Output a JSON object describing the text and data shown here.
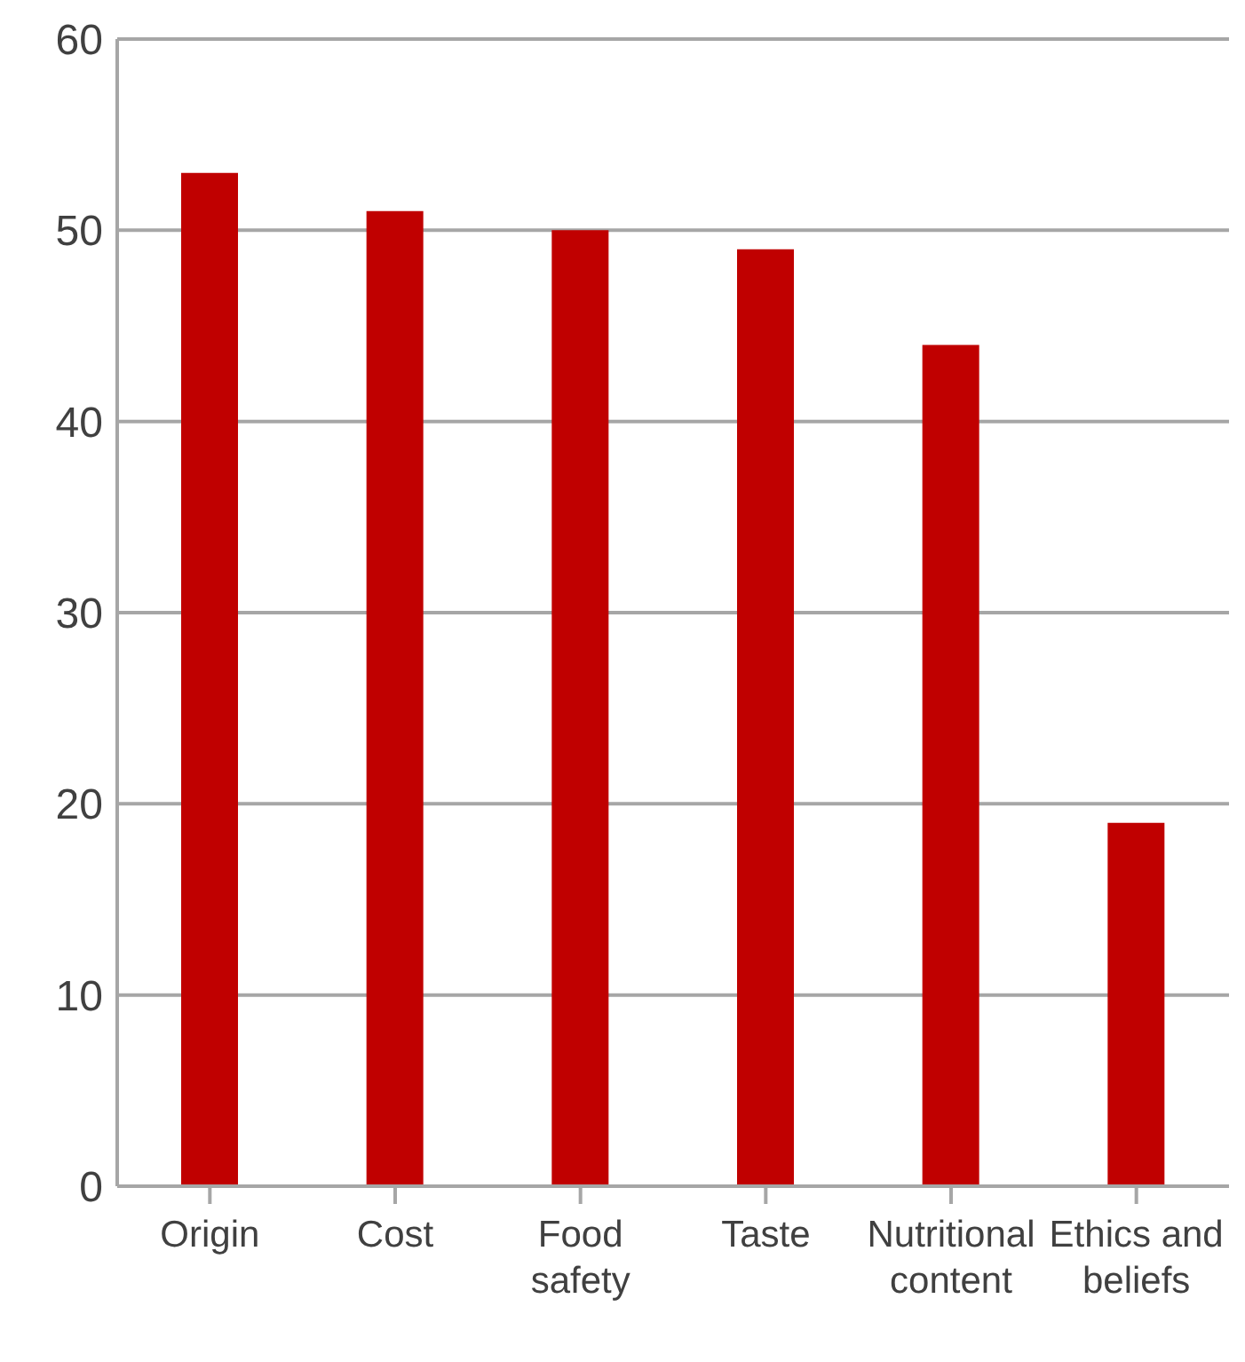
{
  "chart_data": {
    "type": "bar",
    "categories": [
      "Origin",
      "Cost",
      "Food safety",
      "Taste",
      "Nutritional content",
      "Ethics and beliefs"
    ],
    "values": [
      53,
      51,
      50,
      49,
      44,
      19
    ],
    "color": "#c00000",
    "ylim": [
      0,
      60
    ],
    "yticks": [
      0,
      10,
      20,
      30,
      40,
      50,
      60
    ],
    "grid": "y"
  }
}
